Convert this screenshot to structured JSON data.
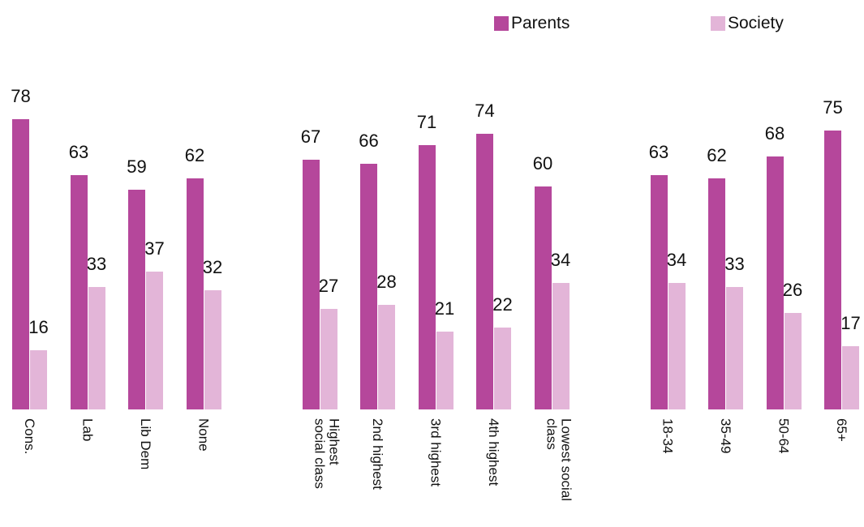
{
  "chart_data": {
    "type": "bar",
    "categories": [
      "Cons.",
      "Lab",
      "Lib Dem",
      "None",
      null,
      "Highest\nsocial class",
      "2nd highest",
      "3rd highest",
      "4th highest",
      "Lowest social\nclass",
      null,
      "18-34",
      "35-49",
      "50-64",
      "65+"
    ],
    "series": [
      {
        "name": "Parents",
        "color": "#b5479b",
        "values": [
          78,
          63,
          59,
          62,
          null,
          67,
          66,
          71,
          74,
          60,
          null,
          63,
          62,
          68,
          75
        ]
      },
      {
        "name": "Society",
        "color": "#e3b5d8",
        "values": [
          16,
          33,
          37,
          32,
          null,
          27,
          28,
          21,
          22,
          34,
          null,
          34,
          33,
          26,
          17
        ]
      }
    ],
    "legend": "top-right"
  }
}
